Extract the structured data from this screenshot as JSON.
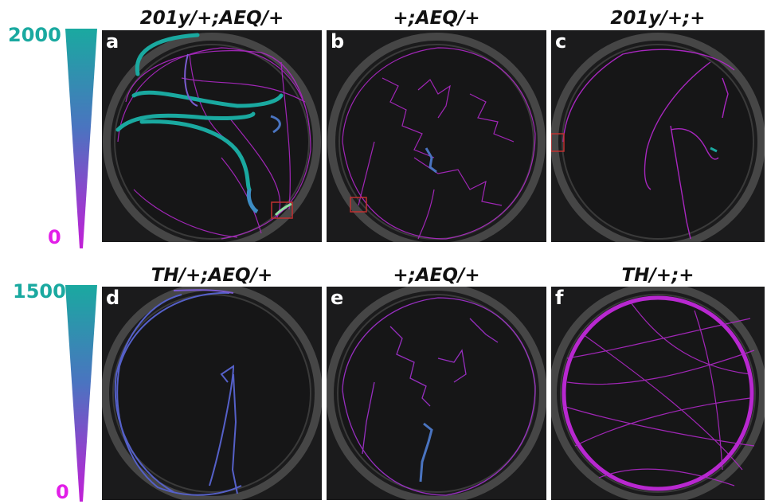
{
  "scales": [
    {
      "max": "2000",
      "min": "0"
    },
    {
      "max": "1500",
      "min": "0"
    }
  ],
  "colors": {
    "high": "#1aa9a0",
    "mid": "#4a74c0",
    "low": "#c21fd6",
    "bg": "#1b1b1c"
  },
  "panels": [
    {
      "letter": "a",
      "title": "201y/+;AEQ/+"
    },
    {
      "letter": "b",
      "title": "+;AEQ/+"
    },
    {
      "letter": "c",
      "title": "201y/+;+"
    },
    {
      "letter": "d",
      "title": "TH/+;AEQ/+"
    },
    {
      "letter": "e",
      "title": "+;AEQ/+"
    },
    {
      "letter": "f",
      "title": "TH/+;+"
    }
  ]
}
